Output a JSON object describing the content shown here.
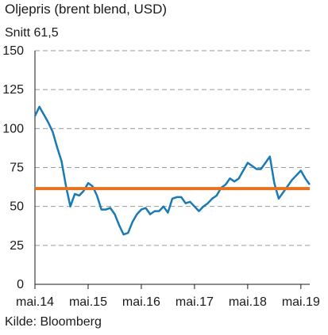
{
  "header": {
    "title": "Oljepris (brent blend, USD)",
    "subtitle": "Snitt 61,5"
  },
  "footer": {
    "source": "Kilde: Bloomberg"
  },
  "chart_data": {
    "type": "line",
    "title": "Oljepris (brent blend, USD)",
    "xlabel": "",
    "ylabel": "",
    "ylim": [
      0,
      150
    ],
    "yticks": [
      0,
      25,
      50,
      75,
      100,
      125,
      150
    ],
    "xlim": [
      "2014-05",
      "2019-07"
    ],
    "xticks": [
      {
        "date": "2014-05",
        "label": "mai.14"
      },
      {
        "date": "2015-05",
        "label": "mai.15"
      },
      {
        "date": "2016-05",
        "label": "mai.16"
      },
      {
        "date": "2017-05",
        "label": "mai.17"
      },
      {
        "date": "2018-05",
        "label": "mai.18"
      },
      {
        "date": "2019-05",
        "label": "mai.19"
      }
    ],
    "grid": "horizontal dashed",
    "series": [
      {
        "name": "",
        "color": "#1a7ab5",
        "x": [
          "2014-05",
          "2014-06",
          "2014-07",
          "2014-08",
          "2014-09",
          "2014-10",
          "2014-11",
          "2014-12",
          "2015-01",
          "2015-02",
          "2015-03",
          "2015-04",
          "2015-05",
          "2015-06",
          "2015-07",
          "2015-08",
          "2015-09",
          "2015-10",
          "2015-11",
          "2015-12",
          "2016-01",
          "2016-02",
          "2016-03",
          "2016-04",
          "2016-05",
          "2016-06",
          "2016-07",
          "2016-08",
          "2016-09",
          "2016-10",
          "2016-11",
          "2016-12",
          "2017-01",
          "2017-02",
          "2017-03",
          "2017-04",
          "2017-05",
          "2017-06",
          "2017-07",
          "2017-08",
          "2017-09",
          "2017-10",
          "2017-11",
          "2017-12",
          "2018-01",
          "2018-02",
          "2018-03",
          "2018-04",
          "2018-05",
          "2018-06",
          "2018-07",
          "2018-08",
          "2018-09",
          "2018-10",
          "2018-11",
          "2018-12",
          "2019-01",
          "2019-02",
          "2019-03",
          "2019-04",
          "2019-05",
          "2019-06",
          "2019-07"
        ],
        "values": [
          108,
          114,
          109,
          104,
          98,
          88,
          79,
          63,
          50,
          58,
          57,
          60,
          65,
          63,
          57,
          48,
          48,
          49,
          45,
          38,
          32,
          33,
          40,
          45,
          48,
          49,
          45,
          47,
          47,
          50,
          46,
          55,
          56,
          56,
          52,
          53,
          50,
          47,
          50,
          52,
          55,
          57,
          62,
          64,
          68,
          66,
          68,
          73,
          78,
          76,
          74,
          74,
          78,
          82,
          65,
          55,
          59,
          63,
          67,
          70,
          73,
          68,
          64
        ]
      },
      {
        "name": "",
        "color": "#e8731f",
        "x": [
          "2014-05",
          "2019-07"
        ],
        "values": [
          61.5,
          61.5
        ]
      }
    ]
  }
}
